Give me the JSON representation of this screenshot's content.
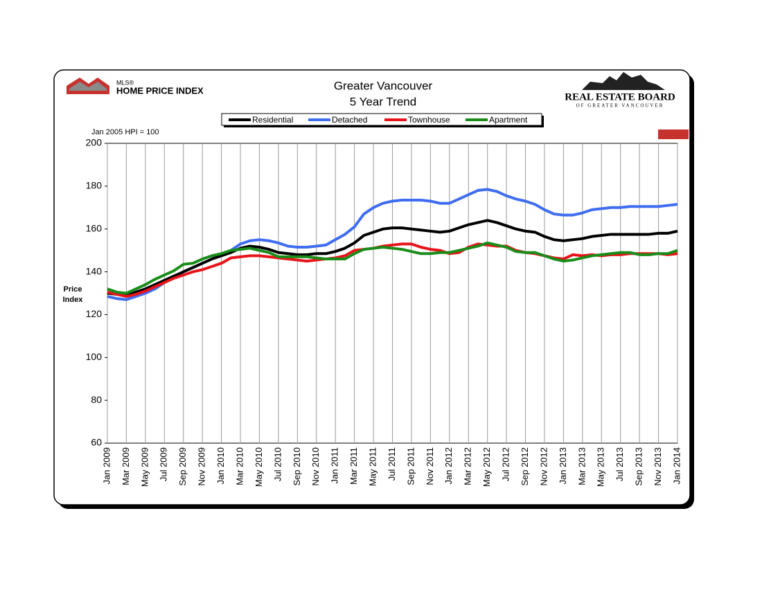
{
  "chart_data": {
    "type": "line",
    "title": "Greater Vancouver",
    "subtitle": "5 Year Trend",
    "note": "Jan 2005 HPI = 100",
    "ylabel": [
      "Price",
      "Index"
    ],
    "logos": {
      "left": [
        "MLS®",
        "HOME PRICE INDEX"
      ],
      "right": [
        "REAL ESTATE BOARD",
        "OF GREATER VANCOUVER"
      ]
    },
    "categories": [
      "Jan 2009",
      null,
      "Mar 2009",
      null,
      "May 2009",
      null,
      "Jul 2009",
      null,
      "Sep 2009",
      null,
      "Nov 2009",
      null,
      "Jan 2010",
      null,
      "Mar 2010",
      null,
      "May 2010",
      null,
      "Jul 2010",
      null,
      "Sep 2010",
      null,
      "Nov 2010",
      null,
      "Jan 2011",
      null,
      "Mar 2011",
      null,
      "May 2011",
      null,
      "Jul 2011",
      null,
      "Sep 2011",
      null,
      "Nov 2011",
      null,
      "Jan 2012",
      null,
      "Mar 2012",
      null,
      "May 2012",
      null,
      "Jul 2012",
      null,
      "Sep 2012",
      null,
      "Nov 2012",
      null,
      "Jan 2013",
      null,
      "Mar 2013",
      null,
      "May 2013",
      null,
      "Jul 2013",
      null,
      "Sep 2013",
      null,
      "Nov 2013",
      null,
      "Jan 2014"
    ],
    "series": [
      {
        "name": "Residential",
        "color": "#000000",
        "values": [
          130,
          129.5,
          129,
          130.5,
          132,
          134,
          136,
          138,
          140,
          142,
          144,
          146,
          147.5,
          149,
          151,
          152,
          151.5,
          150.5,
          149,
          148.5,
          148,
          148,
          148.5,
          148.5,
          149.5,
          151,
          153.5,
          157,
          158.5,
          160,
          160.5,
          160.5,
          160,
          159.5,
          159,
          158.5,
          159,
          160.5,
          162,
          163,
          164,
          163,
          161.5,
          160,
          159,
          158.5,
          156.5,
          155,
          154.5,
          155,
          155.5,
          156.5,
          157,
          157.5,
          157.5,
          157.5,
          157.5,
          157.5,
          158,
          158,
          159
        ]
      },
      {
        "name": "Detached",
        "color": "#3f6df0",
        "values": [
          128.5,
          127.5,
          127,
          128.5,
          130,
          132,
          135,
          137.5,
          140,
          142,
          144,
          146,
          148,
          150,
          153,
          154.5,
          155,
          154.5,
          153.5,
          152,
          151.5,
          151.5,
          152,
          152.5,
          155,
          157.5,
          161,
          167,
          170,
          172,
          173,
          173.5,
          173.5,
          173.5,
          173,
          172,
          172,
          174,
          176,
          178,
          178.5,
          177.5,
          175.5,
          174,
          173,
          171.5,
          169,
          167,
          166.5,
          166.5,
          167.5,
          169,
          169.5,
          170,
          170,
          170.5,
          170.5,
          170.5,
          170.5,
          171,
          171.5
        ]
      },
      {
        "name": "Townhouse",
        "color": "#e8141a",
        "values": [
          130.5,
          129.5,
          128.5,
          129.5,
          131,
          133,
          135,
          137,
          138.5,
          140,
          141,
          142.5,
          144,
          146.5,
          147,
          147.5,
          147.5,
          147,
          146.5,
          146,
          145.5,
          145,
          145.5,
          146,
          146.5,
          147.5,
          150,
          150.5,
          151,
          152,
          152.5,
          153,
          153,
          151.5,
          150.5,
          150,
          148.5,
          149,
          151.5,
          153,
          152.5,
          152,
          152,
          150,
          149,
          148.5,
          147.5,
          146.5,
          146,
          148,
          147.5,
          148,
          147.5,
          148,
          148,
          148.5,
          148.5,
          148.5,
          148.5,
          148,
          148.5
        ]
      },
      {
        "name": "Apartment",
        "color": "#1a8c1a",
        "values": [
          132,
          130.5,
          130,
          132,
          134,
          136.5,
          138.5,
          140.5,
          143.5,
          144,
          146,
          147.5,
          148.5,
          150,
          150.5,
          151,
          150,
          149,
          147,
          147,
          147,
          147,
          146.5,
          146,
          146,
          146,
          148.5,
          150.5,
          151,
          151.5,
          151,
          150.5,
          149.5,
          148.5,
          148.5,
          149,
          149,
          150,
          151,
          152,
          153.5,
          152.5,
          151.5,
          149.5,
          149,
          149,
          147.5,
          146,
          145,
          145.5,
          146.5,
          147.5,
          148,
          148.5,
          149,
          149,
          148,
          148,
          148.5,
          148.5,
          150
        ]
      }
    ],
    "ylim": [
      60,
      200
    ],
    "yticks": [
      60,
      80,
      100,
      120,
      140,
      160,
      180,
      200
    ],
    "grid": "x",
    "legend": "top"
  }
}
